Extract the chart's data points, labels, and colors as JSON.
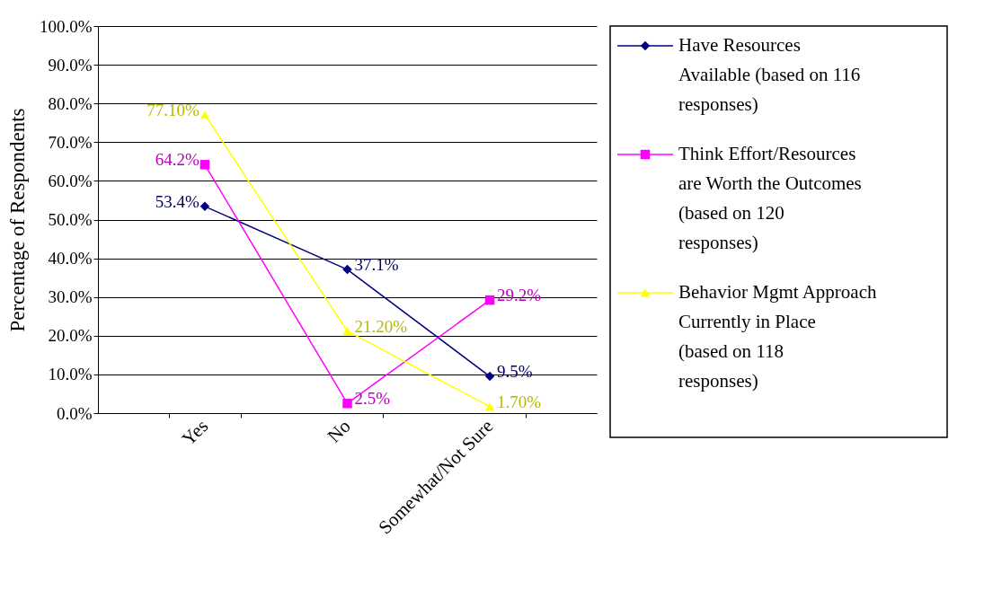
{
  "chart_data": {
    "type": "line",
    "ylabel": "Percentage of Respondents",
    "categories": [
      "Yes",
      "No",
      "Somewhat/Not Sure"
    ],
    "ylim": [
      0,
      100
    ],
    "yticks": [
      {
        "value": 0,
        "label": "0.0%"
      },
      {
        "value": 10,
        "label": "10.0%"
      },
      {
        "value": 20,
        "label": "20.0%"
      },
      {
        "value": 30,
        "label": "30.0%"
      },
      {
        "value": 40,
        "label": "40.0%"
      },
      {
        "value": 50,
        "label": "50.0%"
      },
      {
        "value": 60,
        "label": "60.0%"
      },
      {
        "value": 70,
        "label": "70.0%"
      },
      {
        "value": 80,
        "label": "80.0%"
      },
      {
        "value": 90,
        "label": "90.0%"
      },
      {
        "value": 100,
        "label": "100.0%"
      }
    ],
    "grid": "y",
    "legend": "right",
    "series": [
      {
        "name": "Have Resources Available (based on 116 responses)",
        "color": "#000080",
        "marker": "diamond",
        "values": [
          53.4,
          37.1,
          9.5
        ],
        "value_labels": [
          "53.4%",
          "37.1%",
          "9.5%"
        ]
      },
      {
        "name": "Think Effort/Resources are Worth the Outcomes (based on 120 responses)",
        "color": "#ff00ff",
        "marker": "square",
        "values": [
          64.2,
          2.5,
          29.2
        ],
        "value_labels": [
          "64.2%",
          "2.5%",
          "29.2%"
        ]
      },
      {
        "name": "Behavior Mgmt Approach Currently in Place (based on 118 responses)",
        "color": "#ffff00",
        "marker": "triangle",
        "values": [
          77.1,
          21.2,
          1.7
        ],
        "value_labels": [
          "77.10%",
          "21.20%",
          "1.70%"
        ]
      }
    ]
  }
}
